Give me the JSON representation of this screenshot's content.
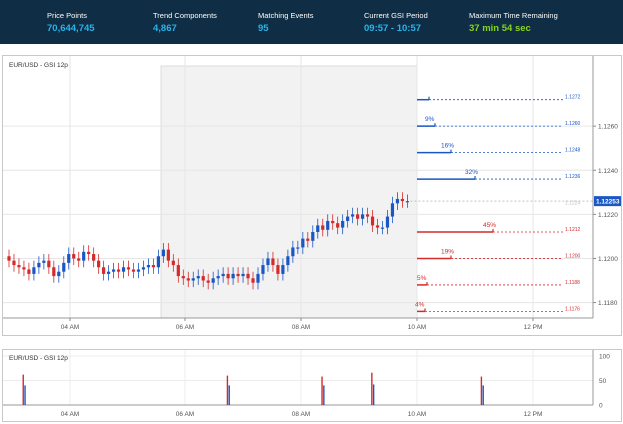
{
  "stats": [
    {
      "label": "Price Points",
      "value": "70,644,745",
      "color": "#27b4ec"
    },
    {
      "label": "Trend Components",
      "value": "4,867",
      "color": "#27b4ec"
    },
    {
      "label": "Matching Events",
      "value": "95",
      "color": "#27b4ec"
    },
    {
      "label": "Current GSI Period",
      "value": "09:57 - 10:57",
      "color": "#27b4ec"
    },
    {
      "label": "Maximum Time Remaining",
      "value": "37 min 54 sec",
      "color": "#8ad31d"
    }
  ],
  "main_chart": {
    "title": "EUR/USD - GSI 12p",
    "current_price": "1.12253",
    "chart_data": {
      "type": "candlestick",
      "title": "EUR/USD - GSI 12p",
      "x_ticks": [
        "04 AM",
        "06 AM",
        "08 AM",
        "10 AM",
        "12 PM"
      ],
      "y_ticks": [
        "1.1180",
        "1.1200",
        "1.1220",
        "1.1240",
        "1.1260"
      ],
      "ylim": [
        1.1173,
        1.129
      ],
      "colors": {
        "up": "#1a56c4",
        "down": "#d42a2a",
        "highlight": "#f2f2f2"
      },
      "candles_close": [
        1.1199,
        1.1197,
        1.1196,
        1.1195,
        1.1193,
        1.1196,
        1.1198,
        1.1199,
        1.1196,
        1.1192,
        1.1194,
        1.1198,
        1.1202,
        1.12,
        1.1199,
        1.1203,
        1.1202,
        1.1199,
        1.1196,
        1.1193,
        1.1194,
        1.1195,
        1.1194,
        1.1196,
        1.1195,
        1.1194,
        1.1195,
        1.1196,
        1.1197,
        1.1196,
        1.1201,
        1.1204,
        1.1199,
        1.1197,
        1.1192,
        1.1191,
        1.119,
        1.1191,
        1.1192,
        1.119,
        1.1189,
        1.1191,
        1.1192,
        1.1193,
        1.1191,
        1.1193,
        1.1192,
        1.1193,
        1.1191,
        1.1189,
        1.1193,
        1.1197,
        1.12,
        1.1197,
        1.1193,
        1.1197,
        1.1201,
        1.1205,
        1.1205,
        1.1209,
        1.1208,
        1.1212,
        1.1215,
        1.1213,
        1.1217,
        1.1216,
        1.1214,
        1.1217,
        1.1219,
        1.122,
        1.1218,
        1.122,
        1.1219,
        1.1215,
        1.1214,
        1.1214,
        1.1219,
        1.1225,
        1.1227,
        1.1226,
        1.1226
      ],
      "forecast_levels": [
        {
          "price_label": "1.1272",
          "percent": "",
          "color": "#1a56c4",
          "value": 1.1272
        },
        {
          "price_label": "1.1260",
          "percent": "9%",
          "color": "#1a56c4",
          "value": 1.126
        },
        {
          "price_label": "1.1248",
          "percent": "16%",
          "color": "#1a56c4",
          "value": 1.1248
        },
        {
          "price_label": "1.1236",
          "percent": "32%",
          "color": "#1a56c4",
          "value": 1.1236
        },
        {
          "price_label": "1.1224",
          "percent": "",
          "color": "#bfbfbf",
          "value": 1.1224
        },
        {
          "price_label": "1.1212",
          "percent": "45%",
          "color": "#d42a2a",
          "value": 1.1212
        },
        {
          "price_label": "1.1200",
          "percent": "19%",
          "color": "#d42a2a",
          "value": 1.12
        },
        {
          "price_label": "1.1188",
          "percent": "5%",
          "color": "#d42a2a",
          "value": 1.1188
        },
        {
          "price_label": "1.1176",
          "percent": "4%",
          "color": "#d42a2a",
          "value": 1.1176
        }
      ]
    }
  },
  "sub_chart": {
    "title": "EUR/USD - GSI 12p",
    "chart_data": {
      "type": "bar",
      "x_ticks": [
        "04 AM",
        "06 AM",
        "08 AM",
        "10 AM",
        "12 PM"
      ],
      "y_ticks": [
        "100",
        "50",
        "0"
      ],
      "ylim": [
        0,
        100
      ],
      "events": [
        {
          "time_index": 3,
          "red": 62,
          "blue": 40
        },
        {
          "time_index": 44,
          "red": 60,
          "blue": 40
        },
        {
          "time_index": 63,
          "red": 58,
          "blue": 40
        },
        {
          "time_index": 73,
          "red": 66,
          "blue": 42
        },
        {
          "time_index": 95,
          "red": 58,
          "blue": 40
        }
      ]
    }
  }
}
